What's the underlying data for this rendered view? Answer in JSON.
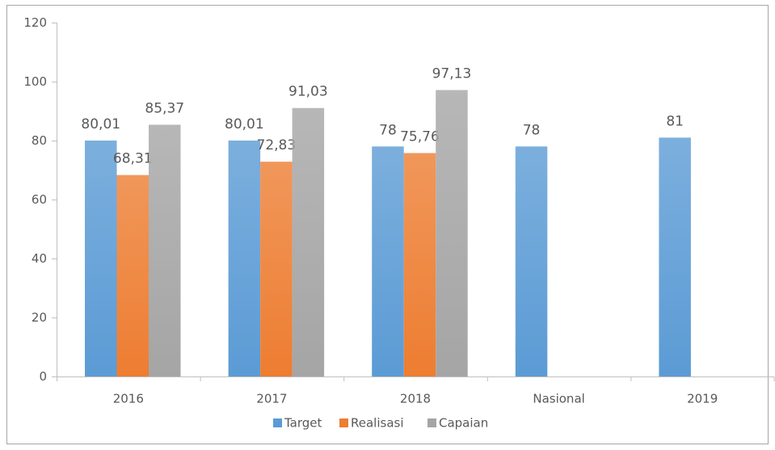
{
  "chart_data": {
    "type": "bar",
    "categories": [
      "2016",
      "2017",
      "2018",
      "Nasional",
      "2019"
    ],
    "series": [
      {
        "name": "Target",
        "color": "#5b9bd5",
        "values": [
          80.01,
          80.01,
          78,
          78,
          81
        ],
        "value_labels": [
          "80,01",
          "80,01",
          "78",
          "78",
          "81"
        ]
      },
      {
        "name": "Realisasi",
        "color": "#ed7d31",
        "values": [
          68.31,
          72.83,
          75.76,
          null,
          null
        ],
        "value_labels": [
          "68,31",
          "72,83",
          "75,76",
          null,
          null
        ]
      },
      {
        "name": "Capaian",
        "color": "#a5a5a5",
        "values": [
          85.37,
          91.03,
          97.13,
          null,
          null
        ],
        "value_labels": [
          "85,37",
          "91,03",
          "97,13",
          null,
          null
        ]
      }
    ],
    "ylim": [
      0,
      120
    ],
    "yticks": [
      0,
      20,
      40,
      60,
      80,
      100,
      120
    ]
  }
}
